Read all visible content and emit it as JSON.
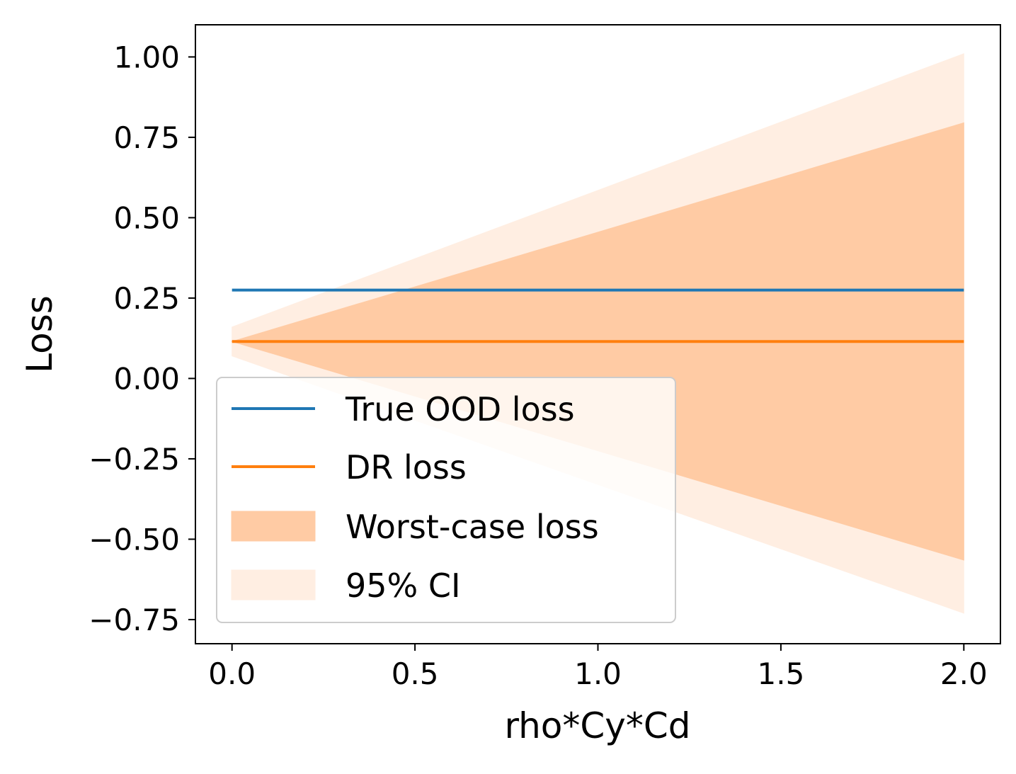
{
  "chart_data": {
    "type": "line",
    "xlabel": "rho*Cy*Cd",
    "ylabel": "Loss",
    "xlim": [
      -0.1,
      2.1
    ],
    "ylim": [
      -0.825,
      1.1
    ],
    "x_ticks": [
      "0.0",
      "0.5",
      "1.0",
      "1.5",
      "2.0"
    ],
    "x_tick_values": [
      0.0,
      0.5,
      1.0,
      1.5,
      2.0
    ],
    "y_ticks": [
      "1.00",
      "0.75",
      "0.50",
      "0.25",
      "0.00",
      "−0.25",
      "−0.50",
      "−0.75"
    ],
    "y_tick_values": [
      1.0,
      0.75,
      0.5,
      0.25,
      0.0,
      -0.25,
      -0.5,
      -0.75
    ],
    "grid": false,
    "legend_position": "lower-left",
    "series": [
      {
        "name": "True OOD loss",
        "kind": "line",
        "color": "#1f77b4",
        "x": [
          0.0,
          2.0
        ],
        "y": [
          0.275,
          0.275
        ]
      },
      {
        "name": "DR loss",
        "kind": "line",
        "color": "#ff7f0e",
        "x": [
          0.0,
          2.0
        ],
        "y": [
          0.115,
          0.115
        ]
      },
      {
        "name": "Worst-case loss",
        "kind": "band",
        "color": "#ffcba4",
        "x": [
          0.0,
          2.0
        ],
        "lower": [
          0.115,
          -0.565
        ],
        "upper": [
          0.115,
          0.795
        ]
      },
      {
        "name": "95% CI",
        "kind": "band",
        "color": "#ffeee2",
        "x": [
          0.0,
          2.0
        ],
        "lower": [
          0.07,
          -0.73
        ],
        "upper": [
          0.16,
          1.01
        ]
      }
    ]
  }
}
